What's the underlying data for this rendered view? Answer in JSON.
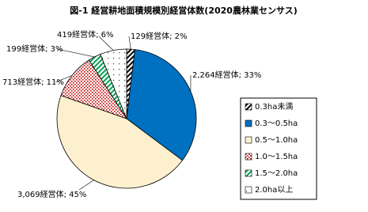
{
  "chart_data": {
    "type": "pie",
    "title": "図-1 経営耕地面積規模別経営体数(2020農林業センサス)",
    "categories": [
      "0.3ha未満",
      "0.3～0.5ha",
      "0.5～1.0ha",
      "1.0～1.5ha",
      "1.5～2.0ha",
      "2.0ha以上"
    ],
    "values": [
      129,
      2264,
      3069,
      713,
      199,
      419
    ],
    "value_labels": [
      "129経営体; 2%",
      "2,264経営体; 33%",
      "3,069経営体; 45%",
      "713経営体; 11%",
      "199経営体; 3%",
      "419経営体; 6%"
    ],
    "colors": [
      "#000000",
      "#0070c0",
      "#fdf0cf",
      "#c00000",
      "#00a050",
      "#404040"
    ],
    "legend": "right"
  }
}
